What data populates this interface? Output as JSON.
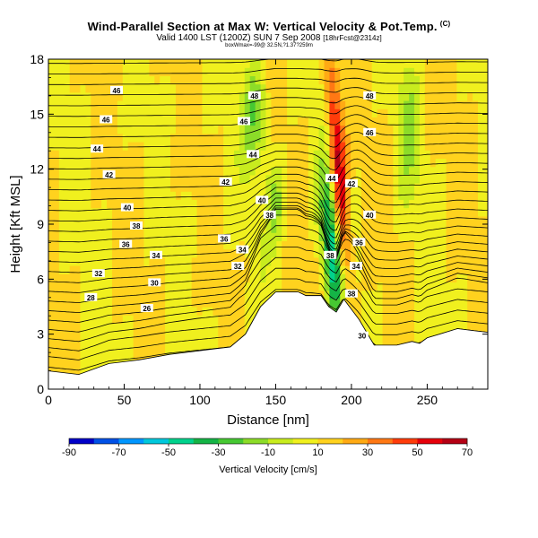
{
  "header": {
    "title": "Wind-Parallel Section at Max W: Vertical Velocity & Pot.Temp.",
    "copyright_mark": "(C)",
    "subtitle": "Valid 1400 LST (1200Z) SUN 7 Sep 2008",
    "subtitle_small": "[18hrFcst@2314z]",
    "subtitle2": "boxWmax=-99@ 32.5N,?1.37?259m"
  },
  "colors": {
    "background": "#ffffff",
    "terrain": "#ffffff",
    "contour": "#000000",
    "colorbar": [
      "#0000c8",
      "#0050e6",
      "#0096ff",
      "#00c8dc",
      "#00d28c",
      "#14b446",
      "#46c832",
      "#8cdc28",
      "#c8ec1e",
      "#f0f01e",
      "#ffd21e",
      "#ffaa14",
      "#ff7814",
      "#ff3c0a",
      "#e6000a",
      "#b40014"
    ]
  },
  "chart_data": {
    "type": "heatmap",
    "title": "Wind-Parallel Section at Max W: Vertical Velocity & Pot.Temp.",
    "xlabel": "Distance [nm]",
    "ylabel": "Height [Kft MSL]",
    "xlim": [
      0,
      290
    ],
    "ylim": [
      0,
      18
    ],
    "x_ticks": [
      0,
      50,
      100,
      150,
      200,
      250
    ],
    "y_ticks": [
      0,
      3,
      6,
      9,
      12,
      15,
      18
    ],
    "colorbar": {
      "label": "Vertical Velocity [cm/s]",
      "range": [
        -90,
        70
      ],
      "tick_labels": [
        -90,
        -70,
        -50,
        -30,
        -10,
        10,
        30,
        50,
        70
      ]
    },
    "terrain": {
      "x": [
        0,
        20,
        40,
        60,
        80,
        100,
        110,
        120,
        130,
        140,
        150,
        165,
        170,
        180,
        185,
        190,
        195,
        205,
        215,
        230,
        240,
        245,
        250,
        258,
        270,
        280,
        290
      ],
      "y": [
        1.0,
        0.8,
        1.4,
        1.6,
        1.9,
        2.1,
        2.2,
        2.3,
        3.0,
        4.5,
        5.3,
        5.3,
        5.1,
        5.1,
        4.5,
        4.2,
        4.9,
        3.8,
        2.4,
        2.4,
        2.6,
        2.5,
        2.8,
        3.0,
        3.3,
        3.2,
        3.1
      ]
    },
    "theta_contours": [
      {
        "label": "46",
        "x": 45,
        "y": 16.3
      },
      {
        "label": "48",
        "x": 136,
        "y": 16.0
      },
      {
        "label": "48",
        "x": 212,
        "y": 16.0
      },
      {
        "label": "46",
        "x": 38,
        "y": 14.7
      },
      {
        "label": "46",
        "x": 129,
        "y": 14.6
      },
      {
        "label": "46",
        "x": 212,
        "y": 14.0
      },
      {
        "label": "44",
        "x": 32,
        "y": 13.1
      },
      {
        "label": "44",
        "x": 135,
        "y": 12.8
      },
      {
        "label": "42",
        "x": 40,
        "y": 11.7
      },
      {
        "label": "42",
        "x": 117,
        "y": 11.3
      },
      {
        "label": "44",
        "x": 187,
        "y": 11.5
      },
      {
        "label": "42",
        "x": 200,
        "y": 11.2
      },
      {
        "label": "40",
        "x": 52,
        "y": 9.9
      },
      {
        "label": "40",
        "x": 141,
        "y": 10.3
      },
      {
        "label": "38",
        "x": 146,
        "y": 9.5
      },
      {
        "label": "40",
        "x": 212,
        "y": 9.5
      },
      {
        "label": "38",
        "x": 58,
        "y": 8.9
      },
      {
        "label": "36",
        "x": 51,
        "y": 7.9
      },
      {
        "label": "36",
        "x": 116,
        "y": 8.2
      },
      {
        "label": "34",
        "x": 71,
        "y": 7.3
      },
      {
        "label": "34",
        "x": 128,
        "y": 7.6
      },
      {
        "label": "36",
        "x": 205,
        "y": 8.0
      },
      {
        "label": "32",
        "x": 33,
        "y": 6.3
      },
      {
        "label": "32",
        "x": 125,
        "y": 6.7
      },
      {
        "label": "30",
        "x": 70,
        "y": 5.8
      },
      {
        "label": "38",
        "x": 186,
        "y": 7.3
      },
      {
        "label": "34",
        "x": 203,
        "y": 6.7
      },
      {
        "label": "28",
        "x": 28,
        "y": 5.0
      },
      {
        "label": "26",
        "x": 65,
        "y": 4.4
      },
      {
        "label": "38",
        "x": 200,
        "y": 5.2
      },
      {
        "label": "30",
        "x": 207,
        "y": 2.9
      }
    ]
  }
}
